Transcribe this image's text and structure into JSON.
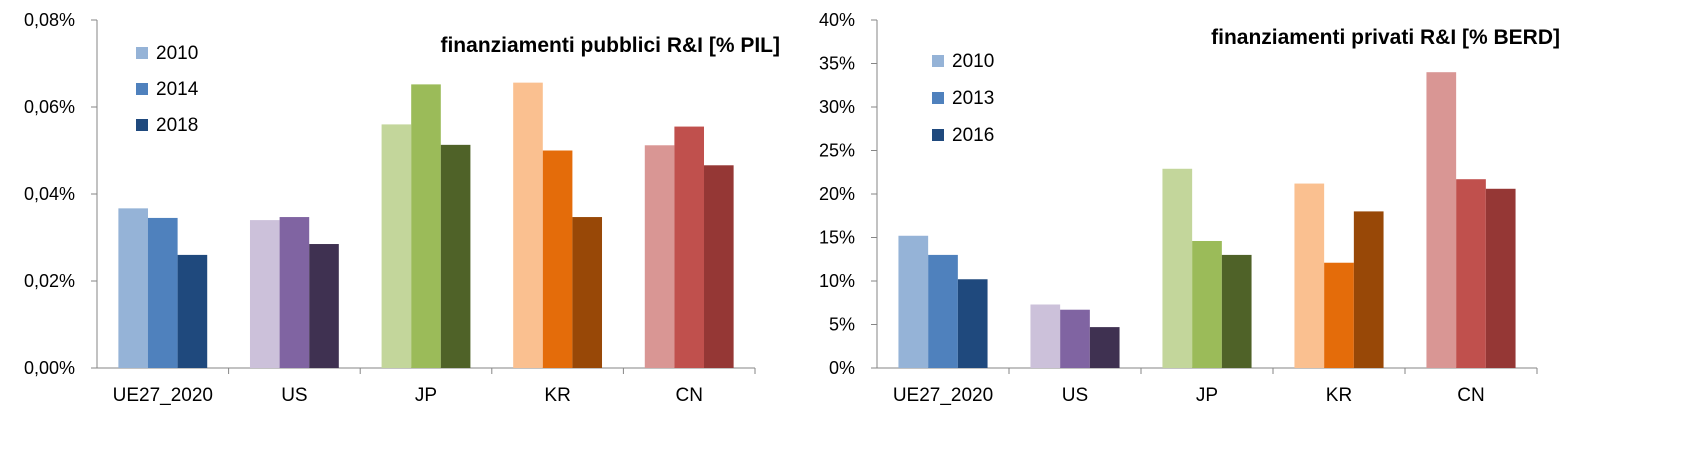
{
  "chart_data": [
    {
      "type": "bar",
      "title": "finanziamenti pubblici R&I [% PIL]",
      "categories": [
        "UE27_2020",
        "US",
        "JP",
        "KR",
        "CN"
      ],
      "series": [
        {
          "name": "2010",
          "values": [
            0.0367,
            0.034,
            0.056,
            0.0656,
            0.0512
          ]
        },
        {
          "name": "2014",
          "values": [
            0.0345,
            0.0347,
            0.0652,
            0.05,
            0.0555
          ]
        },
        {
          "name": "2018",
          "values": [
            0.026,
            0.0285,
            0.0513,
            0.0347,
            0.0466
          ]
        }
      ],
      "ylim": [
        0,
        0.08
      ],
      "yticks": [
        "0,00%",
        "0,02%",
        "0,04%",
        "0,06%",
        "0,08%"
      ],
      "xlabel": "",
      "ylabel": "",
      "legend_placement": "top-left",
      "grid": false,
      "colors": [
        [
          "#95b3d7",
          "#4f81bd",
          "#1f497d"
        ],
        [
          "#ccc1da",
          "#8064a2",
          "#3f3151"
        ],
        [
          "#c3d69b",
          "#9bbb59",
          "#4f6228"
        ],
        [
          "#fac090",
          "#e46c0a",
          "#984807"
        ],
        [
          "#d99694",
          "#c0504d",
          "#953735"
        ]
      ],
      "legend_colors": [
        "#95b3d7",
        "#4f81bd",
        "#1f497d"
      ]
    },
    {
      "type": "bar",
      "title": "finanziamenti privati R&I [% BERD]",
      "categories": [
        "UE27_2020",
        "US",
        "JP",
        "KR",
        "CN"
      ],
      "series": [
        {
          "name": "2010",
          "values": [
            15.2,
            7.3,
            22.9,
            21.2,
            34.0
          ]
        },
        {
          "name": "2013",
          "values": [
            13.0,
            6.7,
            14.6,
            12.1,
            21.7
          ]
        },
        {
          "name": "2016",
          "values": [
            10.2,
            4.7,
            13.0,
            18.0,
            20.6
          ]
        }
      ],
      "ylim": [
        0,
        40
      ],
      "yticks": [
        "0%",
        "5%",
        "10%",
        "15%",
        "20%",
        "25%",
        "30%",
        "35%",
        "40%"
      ],
      "xlabel": "",
      "ylabel": "",
      "legend_placement": "top-left",
      "grid": false,
      "colors": [
        [
          "#95b3d7",
          "#4f81bd",
          "#1f497d"
        ],
        [
          "#ccc1da",
          "#8064a2",
          "#3f3151"
        ],
        [
          "#c3d69b",
          "#9bbb59",
          "#4f6228"
        ],
        [
          "#fac090",
          "#e46c0a",
          "#984807"
        ],
        [
          "#d99694",
          "#c0504d",
          "#953735"
        ]
      ],
      "legend_colors": [
        "#95b3d7",
        "#4f81bd",
        "#1f497d"
      ]
    }
  ]
}
